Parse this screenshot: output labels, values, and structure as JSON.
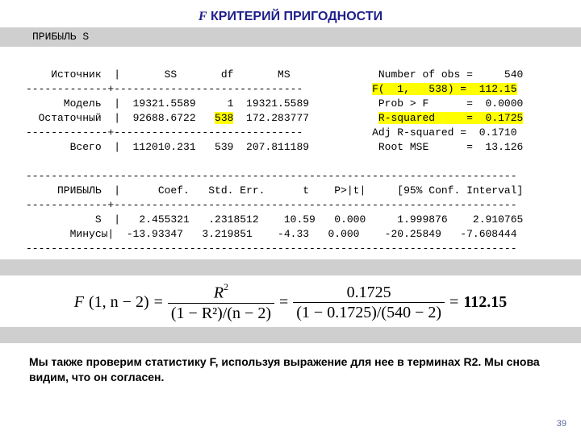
{
  "title_f": "F",
  "title_rest": " КРИТЕРИЙ ПРИГОДНОСТИ",
  "banner_label": "ПРИБЫЛЬ   S",
  "anova": {
    "header": "    Источник  |       SS       df       MS              Number of obs =     540",
    "divider_top": "-------------+------------------------------           ",
    "fstat_line_lhs": "",
    "fstat_line_hl": "F(  1,   538) =  112.15",
    "model_line": "      Модель  |  19321.5589     1  19321.5589           Prob > F      =  0.0000",
    "resid_lhs": "  Остаточный  |  92688.6722   ",
    "resid_df_hl": "538",
    "resid_after": "  172.283777           ",
    "rsq_hl": "R-squared     =  0.1725",
    "divider_mid": "-------------+------------------------------           Adj R-squared =  0.1710",
    "total_line": "       Всего  |  112010.231   539  207.811189           Root MSE      =  13.126",
    "long_rule": "------------------------------------------------------------------------------",
    "coef_header": "     ПРИБЫЛЬ  |      Coef.   Std. Err.      t    P>|t|     [95% Conf. Interval]",
    "coef_rule": "-------------+----------------------------------------------------------------",
    "s_line": "           S  |   2.455321   .2318512    10.59   0.000     1.999876    2.910765",
    "cons_line": "       Минусы|  -13.93347   3.219851    -4.33   0.000    -20.25849   -7.608444"
  },
  "formula": {
    "lead": "F",
    "lead_args": "(1, n − 2)",
    "eq": "=",
    "num1_a": "R",
    "num1_sup": "2",
    "den1": "(1 − R²)/(n − 2)",
    "num2": "0.1725",
    "den2": "(1 − 0.1725)/(540 − 2)",
    "result": "112.15"
  },
  "caption": "Мы также проверим статистику F, используя выражение для нее в терминах R2. Мы снова видим, что он согласен.",
  "page_number": "39"
}
